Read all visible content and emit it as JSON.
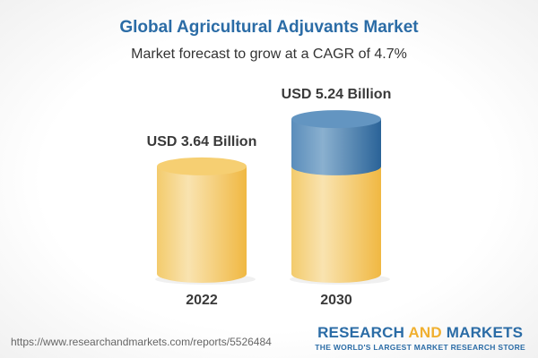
{
  "title": "Global Agricultural Adjuvants Market",
  "subtitle": "Market forecast to grow at a CAGR of 4.7%",
  "source_url": "https://www.researchandmarkets.com/reports/5526484",
  "logo": {
    "part1": "RESEARCH ",
    "part2": "AND",
    "part3": " MARKETS",
    "tagline": "THE WORLD'S LARGEST MARKET RESEARCH STORE"
  },
  "colors": {
    "base": "#f3c458",
    "growth": "#3e78ad",
    "title": "#2b6ca6"
  },
  "chart_data": {
    "type": "bar",
    "style": "3d-cylinder",
    "categories": [
      "2022",
      "2030"
    ],
    "values": [
      3.64,
      5.24
    ],
    "labels": [
      "USD 3.64 Billion",
      "USD 5.24 Billion"
    ],
    "unit": "USD Billion",
    "title": "Global Agricultural Adjuvants Market",
    "subtitle": "Market forecast to grow at a CAGR of 4.7%",
    "grid": false
  }
}
